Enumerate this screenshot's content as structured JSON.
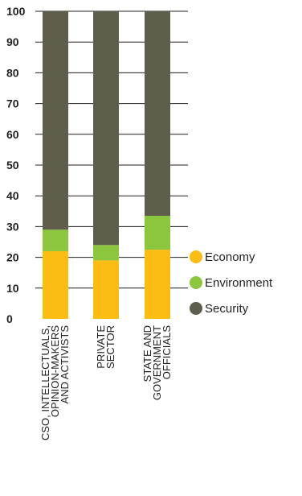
{
  "chart_data": {
    "type": "bar",
    "stacked": true,
    "categories": [
      [
        "CSO, INTELLECTUALS,",
        "OPINION-MAKERS",
        "AND ACTIVISTS"
      ],
      [
        "PRIVATE",
        "SECTOR"
      ],
      [
        "STATE AND",
        "GOVERNMENT",
        "OFFICIALS"
      ]
    ],
    "series": [
      {
        "name": "Economy",
        "values": [
          22,
          19,
          22.5
        ],
        "color": "#fbbc13"
      },
      {
        "name": "Environment",
        "values": [
          7,
          5,
          11
        ],
        "color": "#8cc63f"
      },
      {
        "name": "Security",
        "values": [
          71,
          76,
          66.5
        ],
        "color": "#5f5d4c"
      }
    ],
    "ylim": [
      0,
      100
    ],
    "yticks": [
      "0",
      "10",
      "20",
      "30",
      "40",
      "50",
      "60",
      "70",
      "80",
      "90",
      "100"
    ],
    "grid": true,
    "legend_position": "right",
    "title": "",
    "xlabel": "",
    "ylabel": ""
  }
}
